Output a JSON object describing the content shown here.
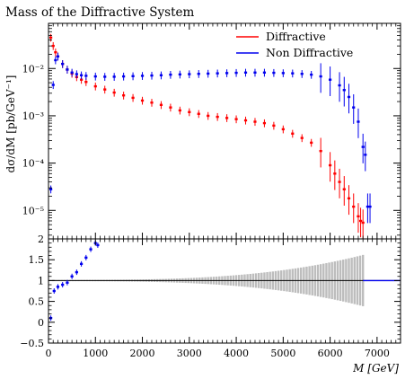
{
  "chart_data": {
    "type": "scatter",
    "title": "Mass of the Diffractive System",
    "xlabel": "M [GeV]",
    "ylabel": "dσ/dM [pb/GeV⁻¹]",
    "ratio_ylabel": "",
    "legend_position": "top-right",
    "x_range": [
      0,
      7500
    ],
    "x_ticks": [
      0,
      1000,
      2000,
      3000,
      4000,
      5000,
      6000,
      7000
    ],
    "x_tick_labels": [
      "0",
      "1000",
      "2000",
      "3000",
      "4000",
      "5000",
      "6000",
      "7000"
    ],
    "main_y_scale": "log",
    "main_y_range": [
      2.5e-06,
      0.09
    ],
    "main_y_ticks": [
      1e-05,
      0.0001,
      0.001,
      0.01
    ],
    "main_y_tick_labels": [
      "10⁻⁵",
      "10⁻⁴",
      "10⁻³",
      "10⁻²"
    ],
    "ratio_y_range": [
      -0.5,
      2.0
    ],
    "ratio_y_ticks": [
      -0.5,
      0,
      0.5,
      1,
      1.5,
      2
    ],
    "ratio_y_tick_labels": [
      "−0.5",
      "0",
      "0.5",
      "1",
      "1.5",
      "2"
    ],
    "colors": {
      "diffractive": "#ff0000",
      "non_diffractive": "#0000ee",
      "band": "#bdbdbd"
    },
    "series": [
      {
        "name": "Diffractive",
        "color": "#ff0000",
        "points": [
          [
            50,
            0.045
          ],
          [
            100,
            0.03
          ],
          [
            150,
            0.022
          ],
          [
            200,
            0.018
          ],
          [
            300,
            0.0125
          ],
          [
            400,
            0.0095
          ],
          [
            500,
            0.0078
          ],
          [
            600,
            0.0066
          ],
          [
            700,
            0.0058
          ],
          [
            800,
            0.0052
          ],
          [
            1000,
            0.0042
          ],
          [
            1200,
            0.0036
          ],
          [
            1400,
            0.0031
          ],
          [
            1600,
            0.0027
          ],
          [
            1800,
            0.0024
          ],
          [
            2000,
            0.0021
          ],
          [
            2200,
            0.0019
          ],
          [
            2400,
            0.0017
          ],
          [
            2600,
            0.0015
          ],
          [
            2800,
            0.0013
          ],
          [
            3000,
            0.0012
          ],
          [
            3200,
            0.0011
          ],
          [
            3400,
            0.001
          ],
          [
            3600,
            0.00095
          ],
          [
            3800,
            0.0009
          ],
          [
            4000,
            0.00085
          ],
          [
            4200,
            0.0008
          ],
          [
            4400,
            0.00075
          ],
          [
            4600,
            0.0007
          ],
          [
            4800,
            0.00062
          ],
          [
            5000,
            0.00052
          ],
          [
            5200,
            0.00042
          ],
          [
            5400,
            0.00034
          ],
          [
            5600,
            0.00027
          ],
          [
            5800,
            0.00018
          ],
          [
            6000,
            9e-05
          ],
          [
            6100,
            6e-05
          ],
          [
            6200,
            4e-05
          ],
          [
            6300,
            2.8e-05
          ],
          [
            6400,
            1.8e-05
          ],
          [
            6500,
            1.2e-05
          ],
          [
            6600,
            7.5e-06
          ],
          [
            6650,
            6e-06
          ],
          [
            6700,
            5.5e-06
          ]
        ]
      },
      {
        "name": "Non Diffractive",
        "color": "#0000ee",
        "points": [
          [
            50,
            2.8e-05
          ],
          [
            100,
            0.0045
          ],
          [
            150,
            0.015
          ],
          [
            200,
            0.018
          ],
          [
            300,
            0.0125
          ],
          [
            400,
            0.0095
          ],
          [
            500,
            0.0082
          ],
          [
            600,
            0.0076
          ],
          [
            700,
            0.0072
          ],
          [
            800,
            0.007
          ],
          [
            1000,
            0.0068
          ],
          [
            1200,
            0.0067
          ],
          [
            1400,
            0.0067
          ],
          [
            1600,
            0.0068
          ],
          [
            1800,
            0.0069
          ],
          [
            2000,
            0.007
          ],
          [
            2200,
            0.0071
          ],
          [
            2400,
            0.0072
          ],
          [
            2600,
            0.0074
          ],
          [
            2800,
            0.0075
          ],
          [
            3000,
            0.0076
          ],
          [
            3200,
            0.0077
          ],
          [
            3400,
            0.0078
          ],
          [
            3600,
            0.0079
          ],
          [
            3800,
            0.008
          ],
          [
            4000,
            0.0081
          ],
          [
            4200,
            0.0082
          ],
          [
            4400,
            0.0082
          ],
          [
            4600,
            0.0082
          ],
          [
            4800,
            0.0081
          ],
          [
            5000,
            0.008
          ],
          [
            5200,
            0.0079
          ],
          [
            5400,
            0.0077
          ],
          [
            5600,
            0.0074
          ],
          [
            5800,
            0.0068
          ],
          [
            6000,
            0.0058
          ],
          [
            6200,
            0.0044
          ],
          [
            6300,
            0.0035
          ],
          [
            6400,
            0.0025
          ],
          [
            6500,
            0.0015
          ],
          [
            6600,
            0.00075
          ],
          [
            6700,
            0.00022
          ],
          [
            6750,
            0.00015
          ],
          [
            6800,
            1.2e-05
          ],
          [
            6850,
            1.2e-05
          ]
        ]
      }
    ],
    "ratio_points": [
      [
        50,
        0.1
      ],
      [
        120,
        0.75
      ],
      [
        200,
        0.85
      ],
      [
        300,
        0.9
      ],
      [
        400,
        0.95
      ],
      [
        500,
        1.1
      ],
      [
        600,
        1.2
      ],
      [
        700,
        1.4
      ],
      [
        800,
        1.55
      ],
      [
        900,
        1.75
      ],
      [
        1000,
        1.9
      ],
      [
        1050,
        1.85
      ]
    ]
  }
}
